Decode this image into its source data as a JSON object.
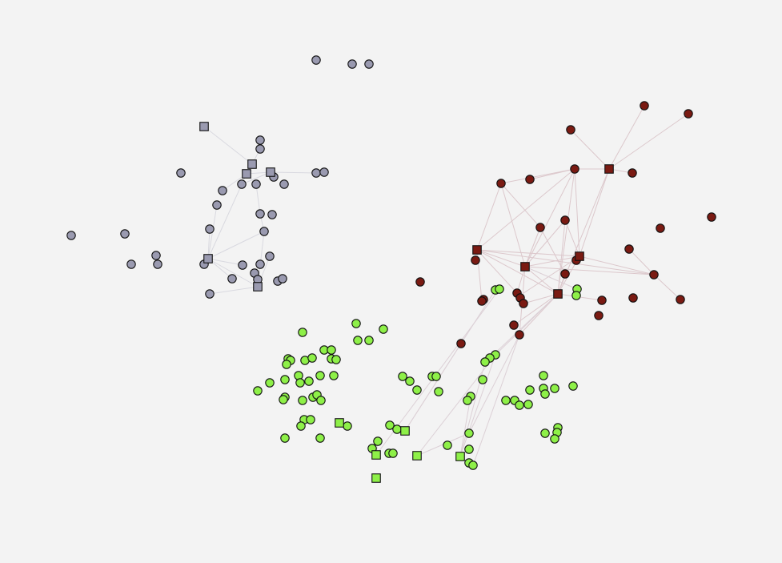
{
  "chart_data": {
    "type": "network",
    "title": "",
    "colors": {
      "background": "#f3f3f3",
      "cluster_gray": "#9a9ab0",
      "cluster_red": "#7a1a12",
      "cluster_green": "#8ef048",
      "edge_gray": "#d9d9e0",
      "edge_red": "#dcc8cc",
      "edge_green": "#dcd0d6"
    },
    "legend": [],
    "cluster_node_counts": {
      "gray": 40,
      "red": 39,
      "green": 83
    },
    "hub_node_counts": {
      "gray": 6,
      "red": 5,
      "green": 6
    }
  }
}
